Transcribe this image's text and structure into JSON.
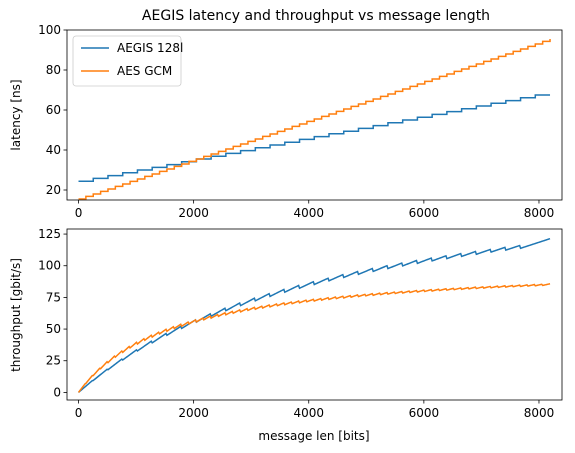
{
  "chart_data": {
    "title": "AEGIS latency and throughput vs message length",
    "subplots": [
      {
        "type": "line",
        "ylabel": "latency [ns]",
        "xlabel": "",
        "xlim": [
          -200,
          8400
        ],
        "ylim": [
          15,
          100
        ],
        "xticks": [
          0,
          2000,
          4000,
          6000,
          8000
        ],
        "yticks": [
          20,
          40,
          60,
          80,
          100
        ],
        "legend": "top-left",
        "series": [
          {
            "name": "AEGIS 128l",
            "color": "#1f77b4",
            "step": true,
            "x": [
              0,
              256,
              512,
              768,
              1024,
              1280,
              1536,
              1792,
              2048,
              2304,
              2560,
              2816,
              3072,
              3328,
              3584,
              3840,
              4096,
              4352,
              4608,
              4864,
              5120,
              5376,
              5632,
              5888,
              6144,
              6400,
              6656,
              6912,
              7168,
              7424,
              7680,
              7936,
              8192
            ],
            "y": [
              24.4,
              25.8,
              27.2,
              28.6,
              30.0,
              31.3,
              32.7,
              34.1,
              35.5,
              36.9,
              38.3,
              39.7,
              41.1,
              42.5,
              43.9,
              45.3,
              46.7,
              48.1,
              49.4,
              50.8,
              52.2,
              53.6,
              55.0,
              56.4,
              57.8,
              59.2,
              60.6,
              62.0,
              63.4,
              64.7,
              66.1,
              67.5,
              67.5
            ]
          },
          {
            "name": "AES GCM",
            "color": "#ff7f0e",
            "step": true,
            "x": [
              0,
              128,
              256,
              384,
              512,
              640,
              768,
              896,
              1024,
              1152,
              1280,
              1408,
              1536,
              1664,
              1792,
              1920,
              2048,
              2176,
              2304,
              2432,
              2560,
              2688,
              2816,
              2944,
              3072,
              3200,
              3328,
              3456,
              3584,
              3712,
              3840,
              3968,
              4096,
              4224,
              4352,
              4480,
              4608,
              4736,
              4864,
              4992,
              5120,
              5248,
              5376,
              5504,
              5632,
              5760,
              5888,
              6016,
              6144,
              6272,
              6400,
              6528,
              6656,
              6784,
              6912,
              7040,
              7168,
              7296,
              7424,
              7552,
              7680,
              7808,
              7936,
              8064,
              8192
            ],
            "y": [
              15.5,
              16.8,
              18.0,
              19.3,
              20.5,
              21.8,
              23.0,
              24.3,
              25.5,
              26.8,
              28.0,
              29.3,
              30.5,
              31.8,
              33.0,
              34.3,
              35.5,
              36.8,
              38.0,
              39.3,
              40.5,
              41.8,
              43.0,
              44.3,
              45.5,
              46.8,
              48.0,
              49.3,
              50.5,
              51.8,
              53.0,
              54.3,
              55.5,
              56.8,
              58.0,
              59.3,
              60.5,
              61.8,
              63.0,
              64.3,
              65.5,
              66.8,
              68.0,
              69.3,
              70.5,
              71.8,
              73.0,
              74.3,
              75.5,
              76.8,
              78.0,
              79.3,
              80.5,
              81.8,
              83.0,
              84.3,
              85.5,
              86.8,
              88.0,
              89.3,
              90.5,
              91.8,
              93.0,
              94.3,
              95.5
            ]
          }
        ]
      },
      {
        "type": "line",
        "ylabel": "throughput [gbit/s]",
        "xlabel": "message len [bits]",
        "xlim": [
          -200,
          8400
        ],
        "ylim": [
          -6,
          129
        ],
        "xticks": [
          0,
          2000,
          4000,
          6000,
          8000
        ],
        "yticks": [
          0,
          25,
          50,
          75,
          100,
          125
        ],
        "series": [
          {
            "name": "AEGIS 128l",
            "color": "#1f77b4",
            "formula": "x / latency(AEGIS 128l, x)",
            "x": [
              0,
              256,
              512,
              1024,
              1536,
              2048,
              3072,
              4096,
              5120,
              6144,
              7168,
              8192
            ],
            "y": [
              0,
              10,
              19,
              34,
              47,
              58,
              75,
              88,
              98,
              106,
              113,
              121
            ]
          },
          {
            "name": "AES GCM",
            "color": "#ff7f0e",
            "formula": "x / latency(AES GCM, x)",
            "x": [
              0,
              256,
              512,
              1024,
              1536,
              2048,
              3072,
              4096,
              5120,
              6144,
              7168,
              8192
            ],
            "y": [
              0,
              14,
              25,
              40,
              50,
              58,
              68,
              74,
              78,
              81,
              84,
              86
            ]
          }
        ]
      }
    ]
  }
}
